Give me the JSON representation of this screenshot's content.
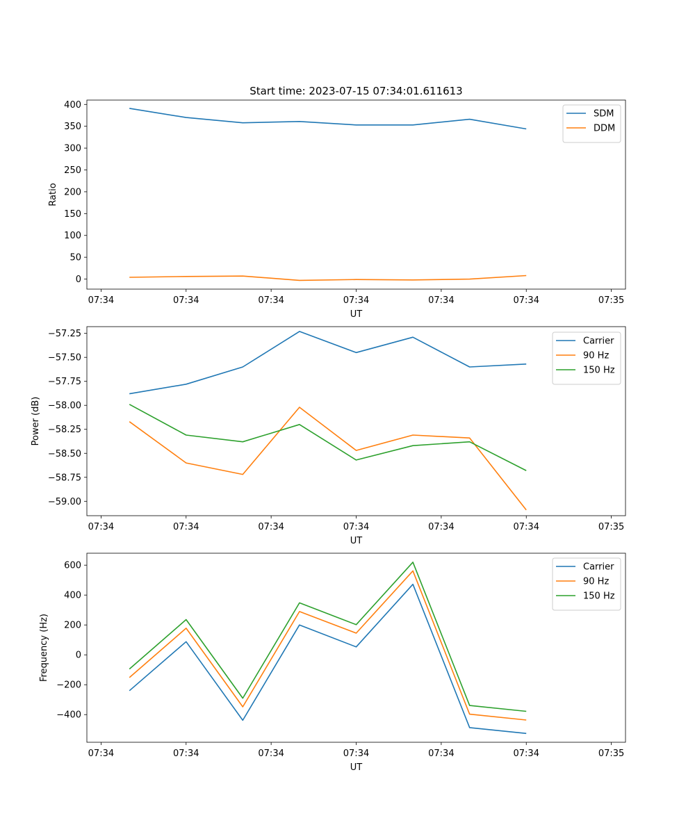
{
  "title": "Start time: 2023-07-15 07:34:01.611613",
  "x_tick_labels": [
    "07:34",
    "07:34",
    "07:34",
    "07:34",
    "07:34",
    "07:34",
    "07:35"
  ],
  "colors": {
    "blue": "#1f77b4",
    "orange": "#ff7f0e",
    "green": "#2ca02c"
  },
  "chart_data": [
    {
      "type": "line",
      "title": "Start time: 2023-07-15 07:34:01.611613",
      "xlabel": "UT",
      "ylabel": "Ratio",
      "xlim": [
        -0.25,
        9.25
      ],
      "ylim": [
        -23,
        410
      ],
      "yticks": [
        0,
        50,
        100,
        150,
        200,
        250,
        300,
        350,
        400
      ],
      "ytick_labels": [
        "0",
        "50",
        "100",
        "150",
        "200",
        "250",
        "300",
        "350",
        "400"
      ],
      "legend_position": "top-right",
      "x": [
        0.5,
        1.5,
        2.5,
        3.5,
        4.5,
        5.5,
        6.5,
        7.5
      ],
      "series": [
        {
          "name": "SDM",
          "color": "#1f77b4",
          "values": [
            391,
            370,
            358,
            361,
            353,
            353,
            366,
            344
          ]
        },
        {
          "name": "DDM",
          "color": "#ff7f0e",
          "values": [
            4,
            6,
            7,
            -3,
            -1,
            -2,
            0,
            8
          ]
        }
      ]
    },
    {
      "type": "line",
      "title": "",
      "xlabel": "UT",
      "ylabel": "Power (dB)",
      "xlim": [
        -0.25,
        9.25
      ],
      "ylim": [
        -59.15,
        -57.18
      ],
      "yticks": [
        -59.0,
        -58.75,
        -58.5,
        -58.25,
        -58.0,
        -57.75,
        -57.5,
        -57.25
      ],
      "ytick_labels": [
        "−59.00",
        "−58.75",
        "−58.50",
        "−58.25",
        "−58.00",
        "−57.75",
        "−57.50",
        "−57.25"
      ],
      "legend_position": "top-right",
      "x": [
        0.5,
        1.5,
        2.5,
        3.5,
        4.5,
        5.5,
        6.5,
        7.5
      ],
      "series": [
        {
          "name": "Carrier",
          "color": "#1f77b4",
          "values": [
            -57.88,
            -57.78,
            -57.6,
            -57.23,
            -57.45,
            -57.29,
            -57.6,
            -57.57
          ]
        },
        {
          "name": "90 Hz",
          "color": "#ff7f0e",
          "values": [
            -58.17,
            -58.6,
            -58.72,
            -58.02,
            -58.47,
            -58.31,
            -58.34,
            -59.09
          ]
        },
        {
          "name": "150 Hz",
          "color": "#2ca02c",
          "values": [
            -57.99,
            -58.31,
            -58.38,
            -58.2,
            -58.57,
            -58.42,
            -58.38,
            -58.68
          ]
        }
      ]
    },
    {
      "type": "line",
      "title": "",
      "xlabel": "UT",
      "ylabel": "Frequency (Hz)",
      "xlim": [
        -0.25,
        9.25
      ],
      "ylim": [
        -585,
        680
      ],
      "yticks": [
        -400,
        -200,
        0,
        200,
        400,
        600
      ],
      "ytick_labels": [
        "−400",
        "−200",
        "0",
        "200",
        "400",
        "600"
      ],
      "legend_position": "top-right",
      "x": [
        0.5,
        1.5,
        2.5,
        3.5,
        4.5,
        5.5,
        6.5,
        7.5
      ],
      "series": [
        {
          "name": "Carrier",
          "color": "#1f77b4",
          "values": [
            -240,
            88,
            -438,
            200,
            53,
            472,
            -487,
            -526
          ]
        },
        {
          "name": "90 Hz",
          "color": "#ff7f0e",
          "values": [
            -152,
            178,
            -348,
            290,
            145,
            562,
            -397,
            -436
          ]
        },
        {
          "name": "150 Hz",
          "color": "#2ca02c",
          "values": [
            -95,
            236,
            -290,
            348,
            202,
            620,
            -339,
            -378
          ]
        }
      ]
    }
  ]
}
